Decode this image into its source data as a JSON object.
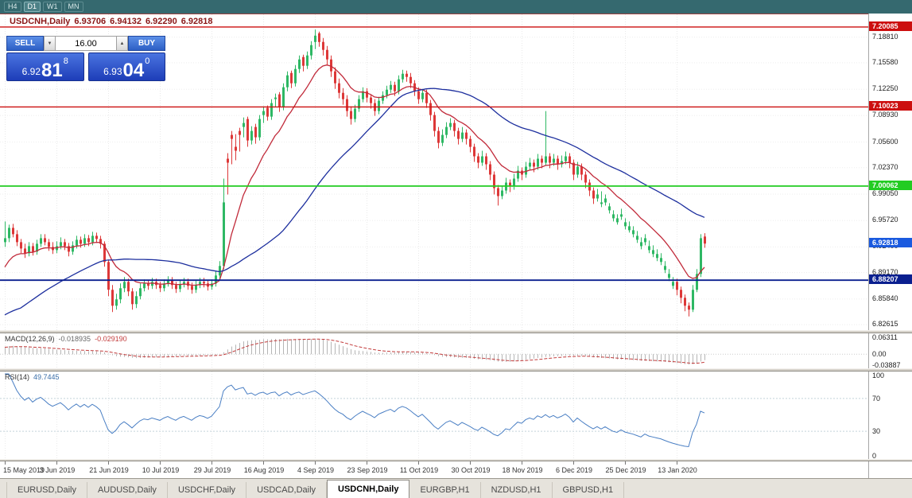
{
  "toolbar": {
    "timeframes": [
      {
        "label": "H4",
        "active": false
      },
      {
        "label": "D1",
        "active": true
      },
      {
        "label": "W1",
        "active": false
      },
      {
        "label": "MN",
        "active": false
      }
    ]
  },
  "chart_header": {
    "symbol_period": "USDCNH,Daily",
    "open": "6.93706",
    "high": "6.94132",
    "low": "6.92290",
    "close": "6.92818"
  },
  "trade_panel": {
    "sell_label": "SELL",
    "buy_label": "BUY",
    "volume": "16.00",
    "volume_down_icon": "▼",
    "volume_up_icon": "▲",
    "bid": {
      "prefix": "6.92",
      "big": "81",
      "sup": "8"
    },
    "ask": {
      "prefix": "6.93",
      "big": "04",
      "sup": "0"
    }
  },
  "indicators": {
    "macd_label": "MACD(12,26,9)",
    "macd_value": "-0.018935",
    "macd_signal": "-0.029190",
    "rsi_label": "RSI(14)",
    "rsi_value": "49.7445"
  },
  "tabs": [
    {
      "label": "EURUSD,Daily",
      "active": false
    },
    {
      "label": "AUDUSD,Daily",
      "active": false
    },
    {
      "label": "USDCHF,Daily",
      "active": false
    },
    {
      "label": "USDCAD,Daily",
      "active": false
    },
    {
      "label": "USDCNH,Daily",
      "active": true
    },
    {
      "label": "EURGBP,H1",
      "active": false
    },
    {
      "label": "NZDUSD,H1",
      "active": false
    },
    {
      "label": "GBPUSD,H1",
      "active": false
    }
  ],
  "chart_data": {
    "type": "candlestick",
    "symbol": "USDCNH",
    "period": "Daily",
    "up_color": "#2eb864",
    "down_color": "#dd3838",
    "price_ticks": [
      7.1881,
      7.1558,
      7.1225,
      7.0893,
      7.056,
      7.0237,
      6.9905,
      6.9572,
      6.924,
      6.8917,
      6.8584,
      6.82615
    ],
    "levels": [
      {
        "value": 7.20085,
        "color": "#cc0f0f",
        "width": 1.4
      },
      {
        "value": 7.10023,
        "color": "#cc0f0f",
        "width": 1.4
      },
      {
        "value": 7.00062,
        "color": "#22cc22",
        "width": 1.8
      },
      {
        "value": 6.88207,
        "color": "#0a1f8f",
        "width": 1.8
      }
    ],
    "bid_label": {
      "value": 6.92818,
      "color": "#1a5adf"
    },
    "moving_averages": [
      {
        "period": 12,
        "method": "ema",
        "color": "#c12a3a"
      },
      {
        "period": 45,
        "method": "sma",
        "color": "#1d2f9e"
      }
    ],
    "macd": {
      "axis": [
        {
          "label": "0.06311",
          "value": 0.06311
        },
        {
          "label": "0.00",
          "value": 0.0
        },
        {
          "label": "-0.03887",
          "value": -0.03887
        }
      ],
      "hist_color": "#b5b5b5",
      "signal_color": "#c23b3b"
    },
    "rsi": {
      "axis": [
        100,
        70,
        30,
        0
      ],
      "levels": [
        70,
        30
      ],
      "color": "#4a7fc4"
    },
    "dates": [
      {
        "label": "15 May 2019",
        "bar": 0
      },
      {
        "label": "3 Jun 2019",
        "bar": 13
      },
      {
        "label": "21 Jun 2019",
        "bar": 26
      },
      {
        "label": "10 Jul 2019",
        "bar": 39
      },
      {
        "label": "29 Jul 2019",
        "bar": 52
      },
      {
        "label": "16 Aug 2019",
        "bar": 65
      },
      {
        "label": "4 Sep 2019",
        "bar": 78
      },
      {
        "label": "23 Sep 2019",
        "bar": 91
      },
      {
        "label": "11 Oct 2019",
        "bar": 104
      },
      {
        "label": "30 Oct 2019",
        "bar": 117
      },
      {
        "label": "18 Nov 2019",
        "bar": 130
      },
      {
        "label": "6 Dec 2019",
        "bar": 143
      },
      {
        "label": "25 Dec 2019",
        "bar": 156
      },
      {
        "label": "13 Jan 2020",
        "bar": 169
      }
    ],
    "ma_seed": [
      6.758,
      6.762,
      6.766,
      6.77,
      6.774,
      6.778,
      6.782,
      6.786,
      6.79,
      6.794,
      6.798,
      6.802,
      6.806,
      6.81,
      6.814,
      6.818,
      6.822,
      6.826,
      6.83,
      6.834,
      6.838,
      6.842,
      6.846,
      6.85,
      6.854,
      6.858,
      6.862,
      6.866,
      6.87,
      6.874,
      6.878,
      6.882,
      6.886,
      6.89,
      6.894,
      6.898,
      6.902,
      6.906,
      6.91,
      6.914
    ],
    "candles": [
      [
        6.93,
        6.956,
        6.924,
        6.935
      ],
      [
        6.935,
        6.952,
        6.93,
        6.948
      ],
      [
        6.948,
        6.953,
        6.936,
        6.94
      ],
      [
        6.94,
        6.945,
        6.925,
        6.93
      ],
      [
        6.93,
        6.934,
        6.916,
        6.922
      ],
      [
        6.922,
        6.928,
        6.91,
        6.916
      ],
      [
        6.916,
        6.93,
        6.912,
        6.925
      ],
      [
        6.925,
        6.929,
        6.913,
        6.918
      ],
      [
        6.918,
        6.933,
        6.914,
        6.928
      ],
      [
        6.928,
        6.94,
        6.924,
        6.935
      ],
      [
        6.935,
        6.94,
        6.926,
        6.93
      ],
      [
        6.93,
        6.934,
        6.919,
        6.924
      ],
      [
        6.924,
        6.93,
        6.915,
        6.92
      ],
      [
        6.92,
        6.931,
        6.916,
        6.925
      ],
      [
        6.925,
        6.936,
        6.921,
        6.93
      ],
      [
        6.93,
        6.934,
        6.92,
        6.925
      ],
      [
        6.925,
        6.929,
        6.912,
        6.918
      ],
      [
        6.918,
        6.931,
        6.914,
        6.926
      ],
      [
        6.926,
        6.938,
        6.922,
        6.933
      ],
      [
        6.933,
        6.937,
        6.923,
        6.928
      ],
      [
        6.928,
        6.94,
        6.924,
        6.935
      ],
      [
        6.935,
        6.939,
        6.925,
        6.93
      ],
      [
        6.93,
        6.943,
        6.926,
        6.938
      ],
      [
        6.938,
        6.942,
        6.929,
        6.934
      ],
      [
        6.934,
        6.938,
        6.922,
        6.928
      ],
      [
        6.928,
        6.931,
        6.899,
        6.905
      ],
      [
        6.905,
        6.908,
        6.862,
        6.87
      ],
      [
        6.87,
        6.876,
        6.842,
        6.85
      ],
      [
        6.85,
        6.865,
        6.845,
        6.858
      ],
      [
        6.858,
        6.878,
        6.853,
        6.872
      ],
      [
        6.872,
        6.886,
        6.867,
        6.88
      ],
      [
        6.88,
        6.884,
        6.862,
        6.868
      ],
      [
        6.868,
        6.872,
        6.845,
        6.852
      ],
      [
        6.852,
        6.868,
        6.847,
        6.862
      ],
      [
        6.862,
        6.878,
        6.858,
        6.872
      ],
      [
        6.872,
        6.883,
        6.868,
        6.878
      ],
      [
        6.878,
        6.882,
        6.87,
        6.875
      ],
      [
        6.875,
        6.885,
        6.871,
        6.88
      ],
      [
        6.88,
        6.884,
        6.871,
        6.876
      ],
      [
        6.876,
        6.88,
        6.867,
        6.872
      ],
      [
        6.872,
        6.883,
        6.868,
        6.878
      ],
      [
        6.878,
        6.887,
        6.874,
        6.882
      ],
      [
        6.882,
        6.886,
        6.871,
        6.876
      ],
      [
        6.876,
        6.88,
        6.866,
        6.871
      ],
      [
        6.871,
        6.882,
        6.867,
        6.877
      ],
      [
        6.877,
        6.885,
        6.873,
        6.88
      ],
      [
        6.88,
        6.884,
        6.87,
        6.875
      ],
      [
        6.875,
        6.879,
        6.865,
        6.87
      ],
      [
        6.87,
        6.881,
        6.866,
        6.876
      ],
      [
        6.876,
        6.885,
        6.872,
        6.88
      ],
      [
        6.88,
        6.885,
        6.873,
        6.878
      ],
      [
        6.878,
        6.882,
        6.869,
        6.874
      ],
      [
        6.874,
        6.883,
        6.87,
        6.878
      ],
      [
        6.878,
        6.893,
        6.874,
        6.888
      ],
      [
        6.888,
        6.906,
        6.884,
        6.9
      ],
      [
        6.9,
        7.01,
        6.896,
        6.98
      ],
      [
        7.035,
        7.042,
        6.99,
        7.03
      ],
      [
        7.065,
        7.07,
        7.028,
        7.06
      ],
      [
        7.05,
        7.066,
        7.033,
        7.045
      ],
      [
        7.07,
        7.074,
        7.044,
        7.065
      ],
      [
        7.075,
        7.087,
        7.062,
        7.08
      ],
      [
        7.085,
        7.088,
        7.05,
        7.058
      ],
      [
        7.058,
        7.076,
        7.053,
        7.07
      ],
      [
        7.075,
        7.079,
        7.054,
        7.062
      ],
      [
        7.062,
        7.09,
        7.058,
        7.085
      ],
      [
        7.09,
        7.101,
        7.08,
        7.095
      ],
      [
        7.099,
        7.102,
        7.083,
        7.088
      ],
      [
        7.088,
        7.11,
        7.084,
        7.105
      ],
      [
        7.11,
        7.117,
        7.1,
        7.112
      ],
      [
        7.116,
        7.119,
        7.094,
        7.1
      ],
      [
        7.1,
        7.13,
        7.096,
        7.125
      ],
      [
        7.125,
        7.145,
        7.12,
        7.14
      ],
      [
        7.143,
        7.146,
        7.124,
        7.13
      ],
      [
        7.13,
        7.153,
        7.126,
        7.148
      ],
      [
        7.148,
        7.165,
        7.143,
        7.16
      ],
      [
        7.163,
        7.166,
        7.145,
        7.152
      ],
      [
        7.152,
        7.17,
        7.148,
        7.165
      ],
      [
        7.165,
        7.183,
        7.16,
        7.178
      ],
      [
        7.182,
        7.1975,
        7.173,
        7.19
      ],
      [
        7.193,
        7.195,
        7.176,
        7.182
      ],
      [
        7.182,
        7.187,
        7.165,
        7.172
      ],
      [
        7.172,
        7.177,
        7.153,
        7.16
      ],
      [
        7.16,
        7.165,
        7.138,
        7.145
      ],
      [
        7.145,
        7.15,
        7.123,
        7.13
      ],
      [
        7.13,
        7.136,
        7.111,
        7.118
      ],
      [
        7.118,
        7.124,
        7.103,
        7.11
      ],
      [
        7.11,
        7.115,
        7.088,
        7.095
      ],
      [
        7.095,
        7.101,
        7.078,
        7.085
      ],
      [
        7.085,
        7.103,
        7.081,
        7.098
      ],
      [
        7.098,
        7.115,
        7.094,
        7.11
      ],
      [
        7.11,
        7.125,
        7.106,
        7.12
      ],
      [
        7.12,
        7.124,
        7.106,
        7.112
      ],
      [
        7.112,
        7.116,
        7.098,
        7.105
      ],
      [
        7.105,
        7.11,
        7.089,
        7.095
      ],
      [
        7.095,
        7.113,
        7.091,
        7.108
      ],
      [
        7.108,
        7.12,
        7.104,
        7.115
      ],
      [
        7.115,
        7.127,
        7.111,
        7.122
      ],
      [
        7.122,
        7.133,
        7.118,
        7.128
      ],
      [
        7.128,
        7.132,
        7.114,
        7.12
      ],
      [
        7.12,
        7.14,
        7.116,
        7.135
      ],
      [
        7.135,
        7.147,
        7.131,
        7.142
      ],
      [
        7.142,
        7.146,
        7.132,
        7.138
      ],
      [
        7.138,
        7.143,
        7.124,
        7.13
      ],
      [
        7.13,
        7.134,
        7.114,
        7.12
      ],
      [
        7.12,
        7.125,
        7.104,
        7.11
      ],
      [
        7.11,
        7.123,
        7.106,
        7.118
      ],
      [
        7.118,
        7.122,
        7.099,
        7.105
      ],
      [
        7.105,
        7.109,
        7.083,
        7.09
      ],
      [
        7.09,
        7.094,
        7.063,
        7.07
      ],
      [
        7.07,
        7.075,
        7.048,
        7.055
      ],
      [
        7.055,
        7.072,
        7.051,
        7.065
      ],
      [
        7.065,
        7.081,
        7.061,
        7.075
      ],
      [
        7.075,
        7.086,
        7.071,
        7.08
      ],
      [
        7.08,
        7.084,
        7.063,
        7.07
      ],
      [
        7.07,
        7.074,
        7.053,
        7.06
      ],
      [
        7.06,
        7.075,
        7.056,
        7.068
      ],
      [
        7.068,
        7.072,
        7.053,
        7.06
      ],
      [
        7.06,
        7.064,
        7.043,
        7.05
      ],
      [
        7.05,
        7.054,
        7.031,
        7.038
      ],
      [
        7.038,
        7.042,
        7.023,
        7.03
      ],
      [
        7.03,
        7.045,
        7.026,
        7.038
      ],
      [
        7.038,
        7.042,
        7.021,
        7.028
      ],
      [
        7.028,
        7.032,
        7.008,
        7.015
      ],
      [
        7.015,
        7.019,
        6.99,
        6.998
      ],
      [
        6.998,
        7.002,
        6.976,
        6.988
      ],
      [
        6.988,
        7.001,
        6.984,
        6.995
      ],
      [
        6.995,
        7.011,
        6.991,
        7.005
      ],
      [
        7.005,
        7.009,
        6.993,
        7.0
      ],
      [
        7.0,
        7.016,
        6.996,
        7.01
      ],
      [
        7.01,
        7.026,
        7.006,
        7.02
      ],
      [
        7.02,
        7.024,
        7.008,
        7.015
      ],
      [
        7.015,
        7.031,
        7.011,
        7.025
      ],
      [
        7.025,
        7.036,
        7.021,
        7.03
      ],
      [
        7.03,
        7.034,
        7.018,
        7.025
      ],
      [
        7.025,
        7.041,
        7.021,
        7.035
      ],
      [
        7.035,
        7.039,
        7.023,
        7.03
      ],
      [
        7.03,
        7.095,
        7.026,
        7.038
      ],
      [
        7.038,
        7.042,
        7.023,
        7.03
      ],
      [
        7.03,
        7.041,
        7.026,
        7.035
      ],
      [
        7.035,
        7.039,
        7.021,
        7.028
      ],
      [
        7.028,
        7.039,
        7.024,
        7.032
      ],
      [
        7.032,
        7.044,
        7.028,
        7.038
      ],
      [
        7.038,
        7.042,
        7.023,
        7.03
      ],
      [
        7.03,
        7.034,
        7.008,
        7.015
      ],
      [
        7.015,
        7.031,
        7.011,
        7.025
      ],
      [
        7.025,
        7.029,
        7.008,
        7.015
      ],
      [
        7.015,
        7.019,
        6.998,
        7.005
      ],
      [
        7.005,
        7.009,
        6.988,
        6.995
      ],
      [
        6.995,
        6.999,
        6.978,
        6.985
      ],
      [
        6.985,
        6.997,
        6.981,
        6.99
      ],
      [
        6.978,
        6.994,
        6.974,
        6.98
      ],
      [
        6.98,
        6.99,
        6.976,
        6.985
      ],
      [
        6.97,
        6.979,
        6.966,
        6.975
      ],
      [
        6.96,
        6.97,
        6.956,
        6.965
      ],
      [
        6.955,
        6.965,
        6.952,
        6.96
      ],
      [
        6.962,
        6.972,
        6.958,
        6.965
      ],
      [
        6.95,
        6.96,
        6.946,
        6.955
      ],
      [
        6.945,
        6.956,
        6.942,
        6.95
      ],
      [
        6.94,
        6.95,
        6.936,
        6.945
      ],
      [
        6.933,
        6.944,
        6.929,
        6.938
      ],
      [
        6.925,
        6.936,
        6.921,
        6.93
      ],
      [
        6.93,
        6.94,
        6.926,
        6.935
      ],
      [
        6.92,
        6.932,
        6.916,
        6.925
      ],
      [
        6.915,
        6.926,
        6.911,
        6.92
      ],
      [
        6.91,
        6.921,
        6.906,
        6.915
      ],
      [
        6.905,
        6.916,
        6.901,
        6.91
      ],
      [
        6.895,
        6.906,
        6.891,
        6.9
      ],
      [
        6.885,
        6.896,
        6.881,
        6.89
      ],
      [
        6.875,
        6.886,
        6.871,
        6.88
      ],
      [
        6.88,
        6.884,
        6.863,
        6.87
      ],
      [
        6.87,
        6.874,
        6.853,
        6.86
      ],
      [
        6.86,
        6.864,
        6.843,
        6.85
      ],
      [
        6.85,
        6.854,
        6.8365,
        6.845
      ],
      [
        6.845,
        6.876,
        6.842,
        6.87
      ],
      [
        6.87,
        6.896,
        6.867,
        6.89
      ],
      [
        6.89,
        6.94,
        6.886,
        6.935
      ],
      [
        6.93706,
        6.94132,
        6.9229,
        6.92818
      ]
    ]
  }
}
